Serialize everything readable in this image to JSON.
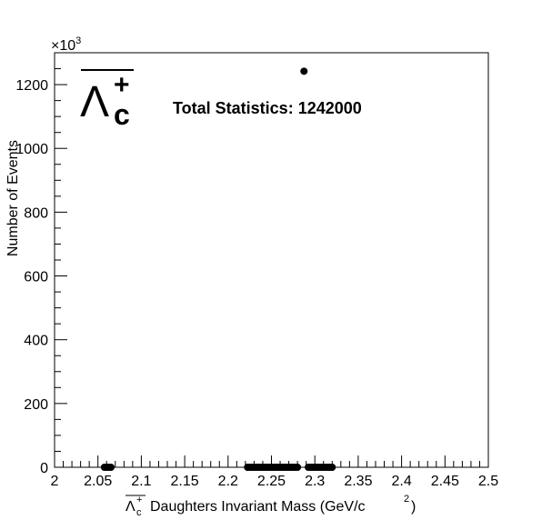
{
  "chart_data": {
    "type": "scatter",
    "title": "",
    "annotation": "Total Statistics: 1242000",
    "particle_symbol": {
      "base": "Λ",
      "subscript": "c",
      "superscript": "+",
      "overline": true
    },
    "xlabel": {
      "particle": "Λc+",
      "text": "Daughters Invariant Mass (GeV/c",
      "unit_power": "2",
      "close": ")"
    },
    "ylabel": "Number of Events",
    "y_multiplier": {
      "base": "×10",
      "exponent": "3"
    },
    "xlim": [
      2.0,
      2.5
    ],
    "ylim": [
      0,
      1300
    ],
    "x_ticks": [
      2,
      2.05,
      2.1,
      2.15,
      2.2,
      2.25,
      2.3,
      2.35,
      2.4,
      2.45,
      2.5
    ],
    "x_tick_labels": [
      "2",
      "2.05",
      "2.1",
      "2.15",
      "2.2",
      "2.25",
      "2.3",
      "2.35",
      "2.4",
      "2.45",
      "2.5"
    ],
    "y_ticks": [
      0,
      200,
      400,
      600,
      800,
      1000,
      1200
    ],
    "y_tick_labels": [
      "0",
      "200",
      "400",
      "600",
      "800",
      "1000",
      "1200"
    ],
    "x_minor_step": 0.01,
    "y_minor_step": 50,
    "grid": false,
    "legend": "none",
    "marker_color": "#000000",
    "series": [
      {
        "x": [
          2.0575,
          2.06,
          2.0625,
          2.065,
          2.2225,
          2.225,
          2.2275,
          2.23,
          2.2325,
          2.235,
          2.2375,
          2.24,
          2.2425,
          2.245,
          2.2475,
          2.25,
          2.2525,
          2.255,
          2.2575,
          2.26,
          2.2625,
          2.265,
          2.2675,
          2.27,
          2.2725,
          2.275,
          2.2775,
          2.28,
          2.2875,
          2.2925,
          2.295,
          2.2975,
          2.3,
          2.3025,
          2.305,
          2.3075,
          2.31,
          2.3125,
          2.315,
          2.3175,
          2.32
        ],
        "y": [
          0,
          0,
          0,
          0,
          0,
          0,
          0,
          0,
          0,
          0,
          0,
          0,
          0,
          0,
          0,
          0,
          0,
          0,
          0,
          0,
          0,
          0,
          0,
          0,
          0,
          0,
          0,
          0,
          1242,
          0,
          0,
          0,
          0,
          0,
          0,
          0,
          0,
          0,
          0,
          0,
          0
        ]
      }
    ]
  }
}
